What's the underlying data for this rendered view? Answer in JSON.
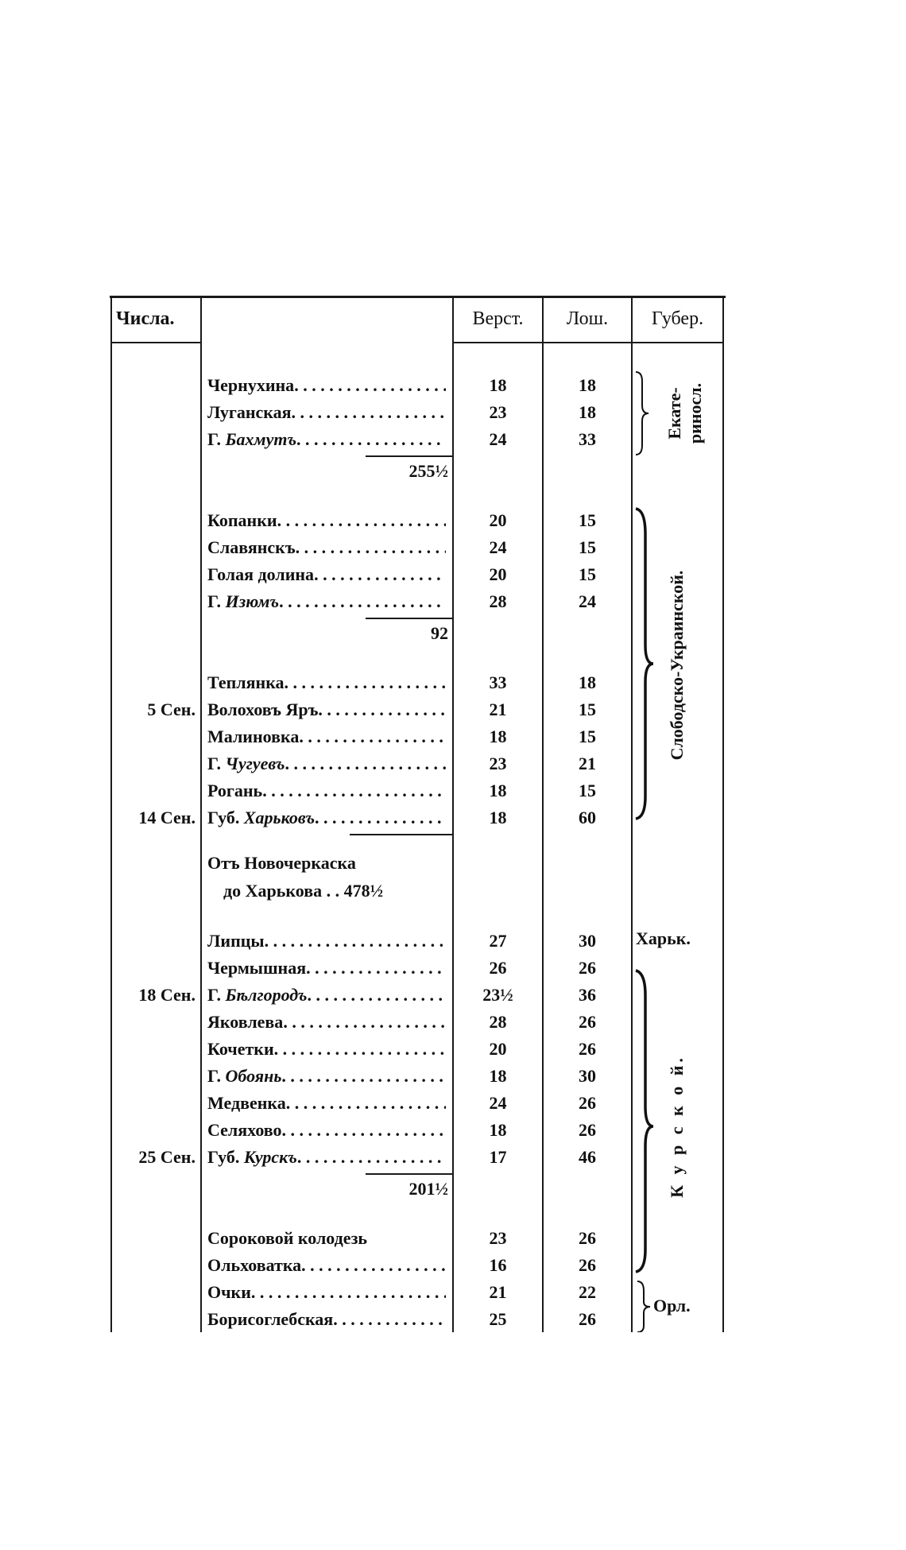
{
  "header": {
    "dates": "Числа.",
    "versts": "Верст.",
    "horses": "Лош.",
    "gubernia": "Губер."
  },
  "rows": [
    {
      "type": "row",
      "date": "",
      "prefix": "",
      "name": "Чернухина",
      "italic": false,
      "versts": "18",
      "horses": "18"
    },
    {
      "type": "row",
      "date": "",
      "prefix": "",
      "name": "Луганская",
      "italic": false,
      "versts": "23",
      "horses": "18"
    },
    {
      "type": "row",
      "date": "",
      "prefix": "Г.",
      "name": "Бахмутъ",
      "italic": true,
      "versts": "24",
      "horses": "33"
    },
    {
      "type": "subtotal",
      "value": "255½"
    },
    {
      "type": "row",
      "date": "",
      "prefix": "",
      "name": "Копанки",
      "italic": false,
      "versts": "20",
      "horses": "15"
    },
    {
      "type": "row",
      "date": "",
      "prefix": "",
      "name": "Славянскъ",
      "italic": false,
      "versts": "24",
      "horses": "15"
    },
    {
      "type": "row",
      "date": "",
      "prefix": "",
      "name": "Голая долина",
      "italic": false,
      "versts": "20",
      "horses": "15"
    },
    {
      "type": "row",
      "date": "",
      "prefix": "Г.",
      "name": "Изюмъ",
      "italic": true,
      "versts": "28",
      "horses": "24"
    },
    {
      "type": "subtotal",
      "value": "92"
    },
    {
      "type": "row",
      "date": "",
      "prefix": "",
      "name": "Теплянка",
      "italic": false,
      "versts": "33",
      "horses": "18"
    },
    {
      "type": "row",
      "date": "5 Сен.",
      "prefix": "",
      "name": "Волоховъ Яръ",
      "italic": false,
      "versts": "21",
      "horses": "15"
    },
    {
      "type": "row",
      "date": "",
      "prefix": "",
      "name": "Малиновка",
      "italic": false,
      "versts": "18",
      "horses": "15"
    },
    {
      "type": "row",
      "date": "",
      "prefix": "Г.",
      "name": "Чугуевъ",
      "italic": true,
      "versts": "23",
      "horses": "21"
    },
    {
      "type": "row",
      "date": "",
      "prefix": "",
      "name": "Рогань",
      "italic": false,
      "versts": "18",
      "horses": "15"
    },
    {
      "type": "row",
      "date": "14 Сен.",
      "prefix": "Губ.",
      "name": "Харьковъ",
      "italic": true,
      "versts": "18",
      "horses": "60"
    },
    {
      "type": "note",
      "line1": "Отъ Новочеркаска",
      "line2": "до Харькова . . 478½"
    },
    {
      "type": "row",
      "date": "",
      "prefix": "",
      "name": "Липцы",
      "italic": false,
      "versts": "27",
      "horses": "30"
    },
    {
      "type": "row",
      "date": "",
      "prefix": "",
      "name": "Чермышная",
      "italic": false,
      "versts": "26",
      "horses": "26"
    },
    {
      "type": "row",
      "date": "18 Сен.",
      "prefix": "Г.",
      "name": "Бѣлгородъ",
      "italic": true,
      "versts": "23½",
      "horses": "36"
    },
    {
      "type": "row",
      "date": "",
      "prefix": "",
      "name": "Яковлева",
      "italic": false,
      "versts": "28",
      "horses": "26"
    },
    {
      "type": "row",
      "date": "",
      "prefix": "",
      "name": "Кочетки",
      "italic": false,
      "versts": "20",
      "horses": "26"
    },
    {
      "type": "row",
      "date": "",
      "prefix": "Г.",
      "name": "Обоянь",
      "italic": true,
      "versts": "18",
      "horses": "30"
    },
    {
      "type": "row",
      "date": "",
      "prefix": "",
      "name": "Медвенка",
      "italic": false,
      "versts": "24",
      "horses": "26"
    },
    {
      "type": "row",
      "date": "",
      "prefix": "",
      "name": "Селяхово",
      "italic": false,
      "versts": "18",
      "horses": "26"
    },
    {
      "type": "row",
      "date": "25 Сен.",
      "prefix": "Губ.",
      "name": "Курскъ",
      "italic": true,
      "versts": "17",
      "horses": "46"
    },
    {
      "type": "subtotal",
      "value": "201½"
    },
    {
      "type": "row",
      "date": "",
      "prefix": "",
      "name": "Сороковой колодезь",
      "italic": false,
      "versts": "23",
      "horses": "26",
      "noLeader": true
    },
    {
      "type": "row",
      "date": "",
      "prefix": "",
      "name": "Ольховатка",
      "italic": false,
      "versts": "16",
      "horses": "26"
    },
    {
      "type": "row",
      "date": "",
      "prefix": "",
      "name": "Очки",
      "italic": false,
      "versts": "21",
      "horses": "22"
    },
    {
      "type": "row",
      "date": "",
      "prefix": "",
      "name": "Борисоглебская",
      "italic": false,
      "versts": "25",
      "horses": "26"
    }
  ],
  "gubernias": {
    "ekaterinoslav_1": "Екате-",
    "ekaterinoslav_2": "риносл.",
    "slobodsko": "Слободско-Украинской.",
    "kharkov": "Харьк.",
    "kursk": "К у р с к о й.",
    "orel": "Орл."
  }
}
